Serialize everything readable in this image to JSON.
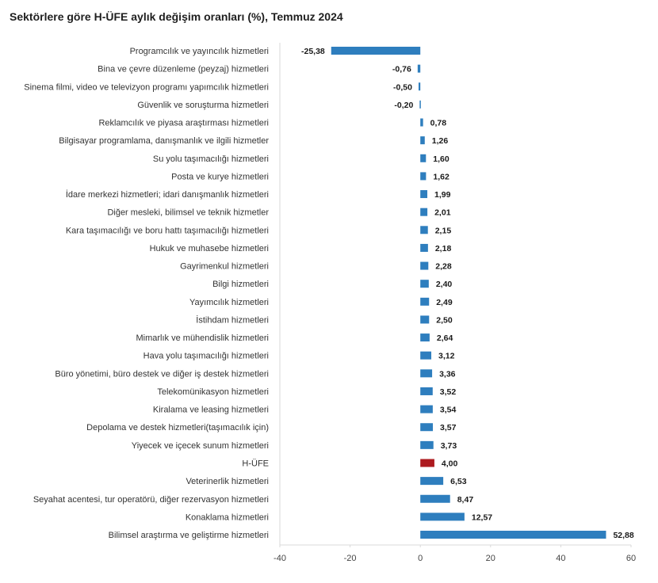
{
  "chart_data": {
    "type": "bar",
    "orientation": "horizontal",
    "title": "Sektörlere göre H-ÜFE aylık değişim oranları (%), Temmuz 2024",
    "categories": [
      "Programcılık ve yayıncılık hizmetleri",
      "Bina ve çevre düzenleme (peyzaj) hizmetleri",
      "Sinema filmi, video ve televizyon programı yapımcılık hizmetleri",
      "Güvenlik ve soruşturma hizmetleri",
      "Reklamcılık ve piyasa araştırması hizmetleri",
      "Bilgisayar programlama, danışmanlık ve ilgili hizmetler",
      "Su yolu taşımacılığı hizmetleri",
      "Posta ve kurye hizmetleri",
      "İdare merkezi hizmetleri; idari danışmanlık hizmetleri",
      "Diğer mesleki, bilimsel ve teknik hizmetler",
      "Kara taşımacılığı ve boru hattı taşımacılığı hizmetleri",
      "Hukuk ve muhasebe hizmetleri",
      "Gayrimenkul hizmetleri",
      "Bilgi hizmetleri",
      "Yayımcılık hizmetleri",
      "İstihdam hizmetleri",
      "Mimarlık ve mühendislik hizmetleri",
      "Hava yolu taşımacılığı hizmetleri",
      "Büro yönetimi, büro destek ve diğer iş destek hizmetleri",
      "Telekomünikasyon hizmetleri",
      "Kiralama ve leasing hizmetleri",
      "Depolama ve destek hizmetleri(taşımacılık için)",
      "Yiyecek ve içecek sunum hizmetleri",
      "H-ÜFE",
      "Veterinerlik hizmetleri",
      "Seyahat acentesi, tur operatörü, diğer rezervasyon hizmetleri",
      "Konaklama hizmetleri",
      "Bilimsel araştırma ve geliştirme hizmetleri"
    ],
    "values": [
      -25.38,
      -0.76,
      -0.5,
      -0.2,
      0.78,
      1.26,
      1.6,
      1.62,
      1.99,
      2.01,
      2.15,
      2.18,
      2.28,
      2.4,
      2.49,
      2.5,
      2.64,
      3.12,
      3.36,
      3.52,
      3.54,
      3.57,
      3.73,
      4.0,
      6.53,
      8.47,
      12.57,
      52.88
    ],
    "value_labels": [
      "-25,38",
      "-0,76",
      "-0,50",
      "-0,20",
      "0,78",
      "1,26",
      "1,60",
      "1,62",
      "1,99",
      "2,01",
      "2,15",
      "2,18",
      "2,28",
      "2,40",
      "2,49",
      "2,50",
      "2,64",
      "3,12",
      "3,36",
      "3,52",
      "3,54",
      "3,57",
      "3,73",
      "4,00",
      "6,53",
      "8,47",
      "12,57",
      "52,88"
    ],
    "highlight_category": "H-ÜFE",
    "xlim": [
      -40,
      60
    ],
    "xticks": [
      -40,
      -20,
      0,
      20,
      40,
      60
    ],
    "grid": false,
    "legend": "none",
    "colors": {
      "bar": "#2e7ebe",
      "highlight": "#ad1a1f"
    }
  }
}
